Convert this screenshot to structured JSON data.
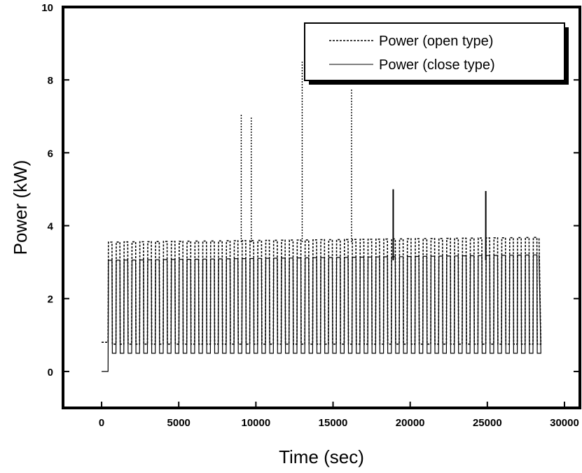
{
  "chart_data": {
    "type": "line",
    "title": "",
    "xlabel": "Time (sec)",
    "ylabel": "Power (kW)",
    "xlim": [
      -2500,
      31000
    ],
    "ylim": [
      -1,
      10
    ],
    "x_ticks": [
      0,
      5000,
      10000,
      15000,
      20000,
      25000,
      30000
    ],
    "y_ticks": [
      0,
      2,
      4,
      6,
      8,
      10
    ],
    "x_tick_labels": [
      "0",
      "5000",
      "10000",
      "15000",
      "20000",
      "25000",
      "30000"
    ],
    "y_tick_labels": [
      "0",
      "2",
      "4",
      "6",
      "8",
      "10"
    ],
    "legend": {
      "position": "top-right",
      "entries": [
        "Power (open type)",
        "Power (close type)"
      ]
    },
    "series": [
      {
        "name": "Power (open type)",
        "style": "dashed",
        "color": "#000000",
        "start_x": 0,
        "start_value": 0.8,
        "ramp_x": 420,
        "end_x": 28350,
        "high_value": 3.55,
        "high_value_end": 3.68,
        "low_value": 0.75,
        "period_sec": 510,
        "spikes": [
          {
            "x": 9050,
            "value": 7.05
          },
          {
            "x": 9700,
            "value": 7.0
          },
          {
            "x": 13000,
            "value": 8.5
          },
          {
            "x": 16200,
            "value": 7.75
          }
        ]
      },
      {
        "name": "Power (close type)",
        "style": "solid",
        "color": "#000000",
        "start_x": 0,
        "start_value": 0.0,
        "ramp_x": 420,
        "end_x": 28350,
        "high_value": 3.05,
        "high_value_end": 3.2,
        "low_value": 0.5,
        "period_sec": 510,
        "spikes": [
          {
            "x": 18900,
            "value": 5.0
          },
          {
            "x": 24900,
            "value": 4.95
          }
        ]
      }
    ]
  }
}
